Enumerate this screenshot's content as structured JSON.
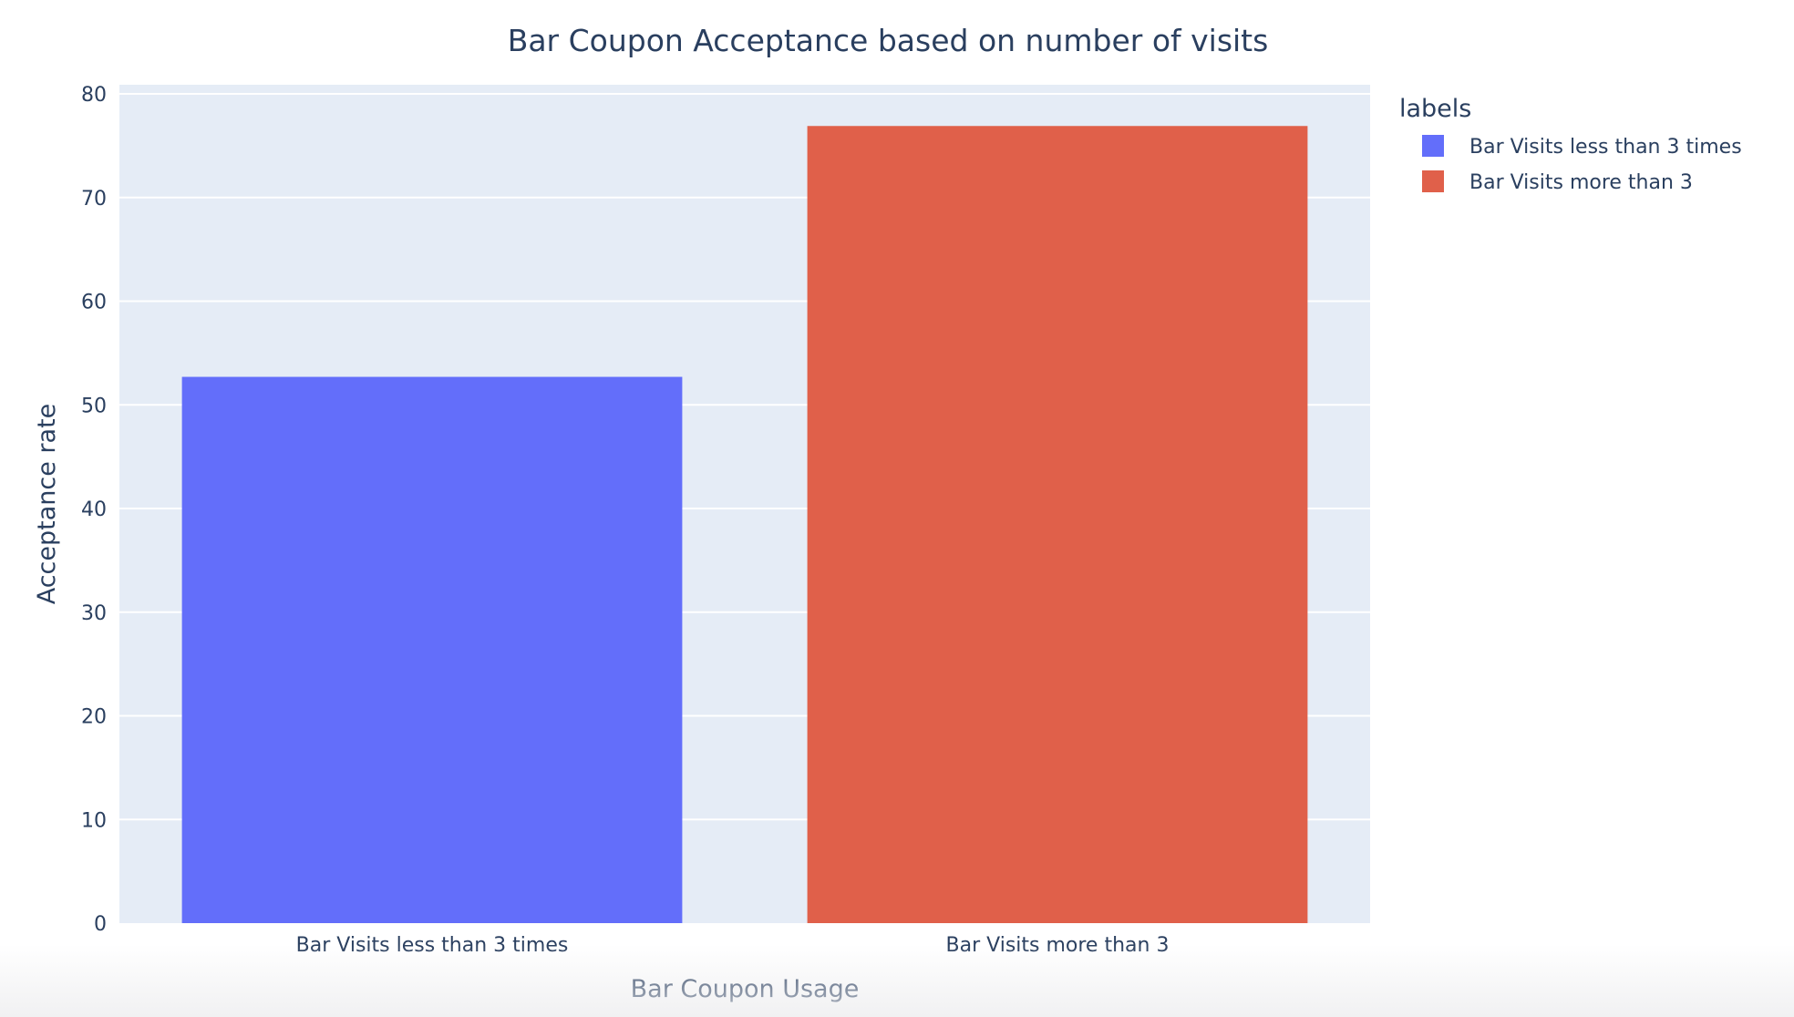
{
  "chart_data": {
    "type": "bar",
    "title": "Bar Coupon Acceptance based on number of visits",
    "xlabel": "Bar Coupon Usage",
    "ylabel": "Acceptance rate",
    "categories": [
      "Bar Visits less than 3 times",
      "Bar Visits more than 3"
    ],
    "values": [
      52.7,
      76.9
    ],
    "colors": [
      "#636efa",
      "#e0604a"
    ],
    "ylim": [
      0,
      80
    ],
    "yticks": [
      0,
      10,
      20,
      30,
      40,
      50,
      60,
      70,
      80
    ],
    "grid": true,
    "plot_background": "#e5ecf6",
    "legend": {
      "title": "labels",
      "placement": "top-right outside",
      "entries": [
        "Bar Visits less than 3 times",
        "Bar Visits more than 3"
      ]
    }
  }
}
